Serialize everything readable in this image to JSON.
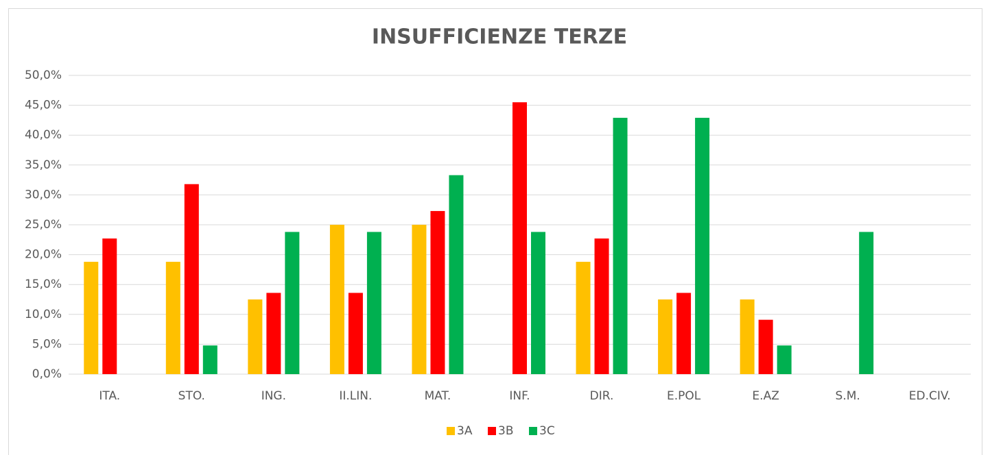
{
  "chart_data": {
    "type": "bar",
    "title": "INSUFFICIENZE TERZE",
    "categories": [
      "ITA.",
      "STO.",
      "ING.",
      "II.LIN.",
      "MAT.",
      "INF.",
      "DIR.",
      "E.POL",
      "E.AZ",
      "S.M.",
      "ED.CIV."
    ],
    "series": [
      {
        "name": "3A",
        "color": "#ffc000",
        "values": [
          18.8,
          18.8,
          12.5,
          25.0,
          25.0,
          0,
          18.8,
          12.5,
          12.5,
          0,
          0
        ]
      },
      {
        "name": "3B",
        "color": "#ff0000",
        "values": [
          22.7,
          31.8,
          13.6,
          13.6,
          27.3,
          45.5,
          22.7,
          13.6,
          9.1,
          0,
          0
        ]
      },
      {
        "name": "3C",
        "color": "#00b050",
        "values": [
          0,
          4.8,
          23.8,
          23.8,
          33.3,
          23.8,
          42.9,
          42.9,
          4.8,
          23.8,
          0
        ]
      }
    ],
    "ylim": [
      0,
      50
    ],
    "yticks": [
      {
        "value": 0,
        "label": "0,0%"
      },
      {
        "value": 5,
        "label": "5,0%"
      },
      {
        "value": 10,
        "label": "10,0%"
      },
      {
        "value": 15,
        "label": "15,0%"
      },
      {
        "value": 20,
        "label": "20,0%"
      },
      {
        "value": 25,
        "label": "25,0%"
      },
      {
        "value": 30,
        "label": "30,0%"
      },
      {
        "value": 35,
        "label": "35,0%"
      },
      {
        "value": 40,
        "label": "40,0%"
      },
      {
        "value": 45,
        "label": "45,0%"
      },
      {
        "value": 50,
        "label": "50,0%"
      }
    ],
    "grid": true,
    "legend": "bottom"
  }
}
